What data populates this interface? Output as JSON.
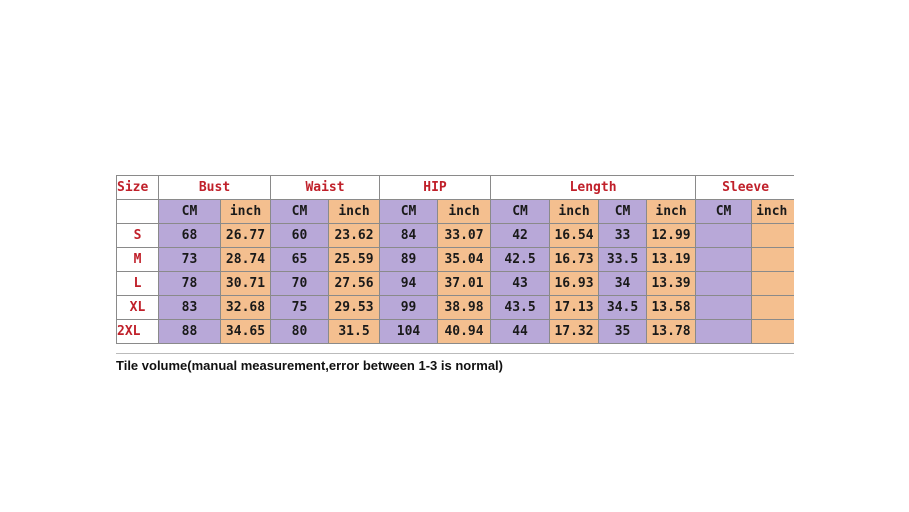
{
  "headers": {
    "size": "Size",
    "groups": [
      "Bust",
      "Waist",
      "HIP",
      "Length",
      "Sleeve"
    ]
  },
  "units": [
    "CM",
    "inch",
    "CM",
    "inch",
    "CM",
    "inch",
    "CM",
    "inch",
    "CM",
    "inch",
    "CM",
    "inch"
  ],
  "rows": [
    {
      "size": "S",
      "values": [
        "68",
        "26.77",
        "60",
        "23.62",
        "84",
        "33.07",
        "42",
        "16.54",
        "33",
        "12.99",
        "",
        ""
      ]
    },
    {
      "size": "M",
      "values": [
        "73",
        "28.74",
        "65",
        "25.59",
        "89",
        "35.04",
        "42.5",
        "16.73",
        "33.5",
        "13.19",
        "",
        ""
      ]
    },
    {
      "size": "L",
      "values": [
        "78",
        "30.71",
        "70",
        "27.56",
        "94",
        "37.01",
        "43",
        "16.93",
        "34",
        "13.39",
        "",
        ""
      ]
    },
    {
      "size": "XL",
      "values": [
        "83",
        "32.68",
        "75",
        "29.53",
        "99",
        "38.98",
        "43.5",
        "17.13",
        "34.5",
        "13.58",
        "",
        ""
      ]
    },
    {
      "size": "2XL",
      "values": [
        "88",
        "34.65",
        "80",
        "31.5",
        "104",
        "40.94",
        "44",
        "17.32",
        "35",
        "13.78",
        "",
        ""
      ]
    }
  ],
  "note": "Tile volume(manual measurement,error between 1-3 is normal)"
}
